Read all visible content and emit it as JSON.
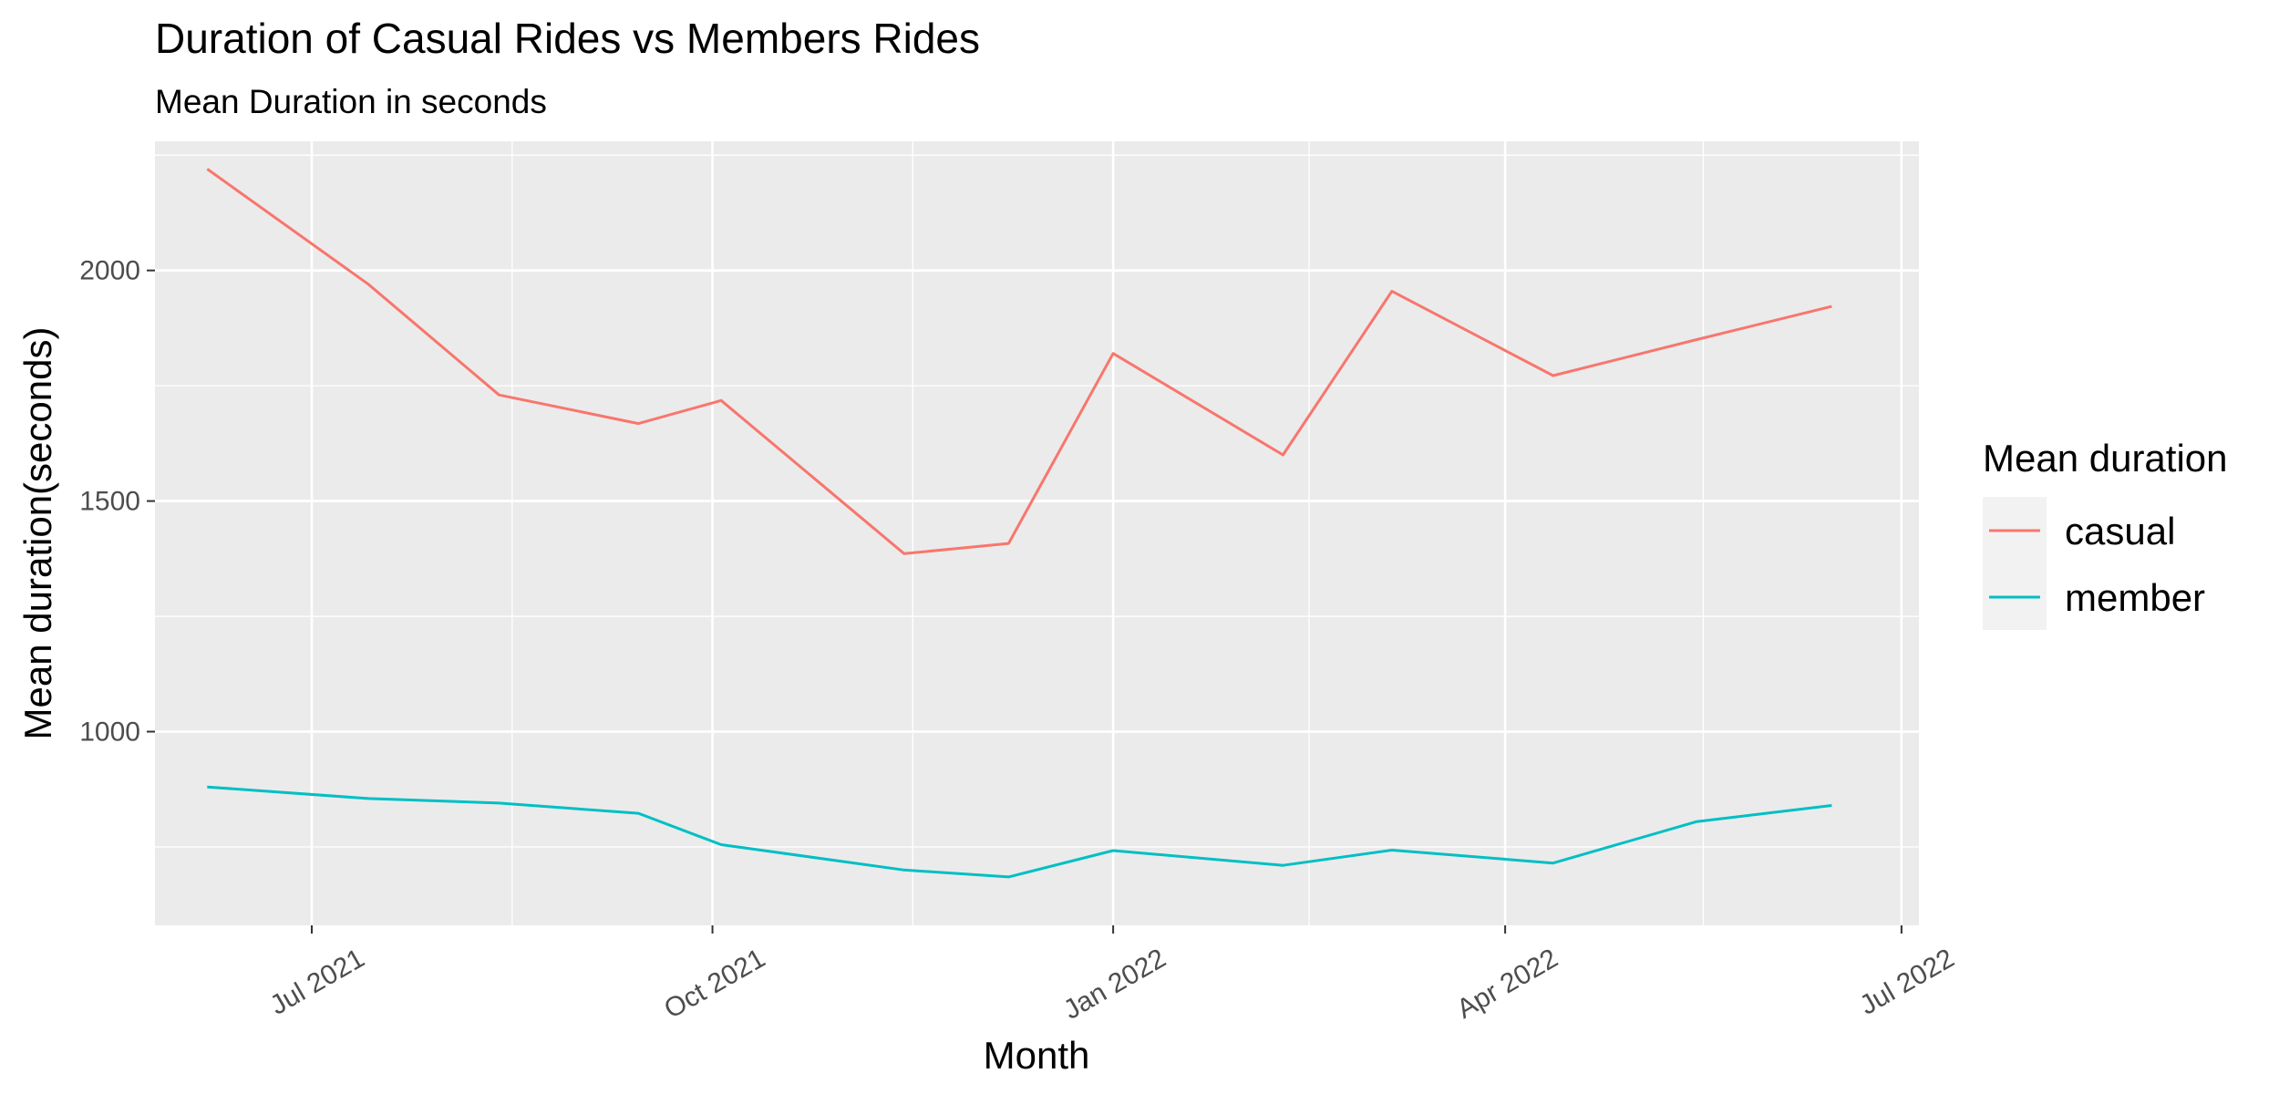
{
  "chart_data": {
    "type": "line",
    "title": "Duration of Casual Rides vs Members Rides",
    "subtitle": "Mean Duration in seconds",
    "xlabel": "Month",
    "ylabel": "Mean duration(seconds)",
    "x_tick_labels": [
      "Jul 2021",
      "Oct 2021",
      "Jan 2022",
      "Apr 2022",
      "Jul 2022"
    ],
    "y_tick_labels": [
      "1000",
      "1500",
      "2000"
    ],
    "yticks": [
      1000,
      1500,
      2000
    ],
    "ylim": [
      580,
      2280
    ],
    "xlim": [
      "2021-05-26",
      "2022-07-05"
    ],
    "x_tick_dates": [
      "2021-07-01",
      "2021-10-01",
      "2022-01-01",
      "2022-04-01",
      "2022-07-01"
    ],
    "x": [
      "2021-06-07",
      "2021-07-14",
      "2021-08-13",
      "2021-09-14",
      "2021-10-03",
      "2021-11-14",
      "2021-12-08",
      "2022-01-01",
      "2022-02-09",
      "2022-03-06",
      "2022-04-12",
      "2022-05-15",
      "2022-06-15"
    ],
    "series": [
      {
        "name": "casual",
        "color": "#F8766D",
        "values": [
          2220,
          1970,
          1730,
          1668,
          1718,
          1386,
          1408,
          1820,
          1600,
          1955,
          1772,
          1850,
          1922
        ]
      },
      {
        "name": "member",
        "color": "#00BFC4",
        "values": [
          880,
          855,
          845,
          823,
          755,
          700,
          685,
          742,
          710,
          743,
          715,
          805,
          840
        ]
      }
    ],
    "grid": true,
    "panel_background": "#EBEBEB",
    "legend": {
      "title": "Mean duration",
      "placement": "right"
    }
  }
}
